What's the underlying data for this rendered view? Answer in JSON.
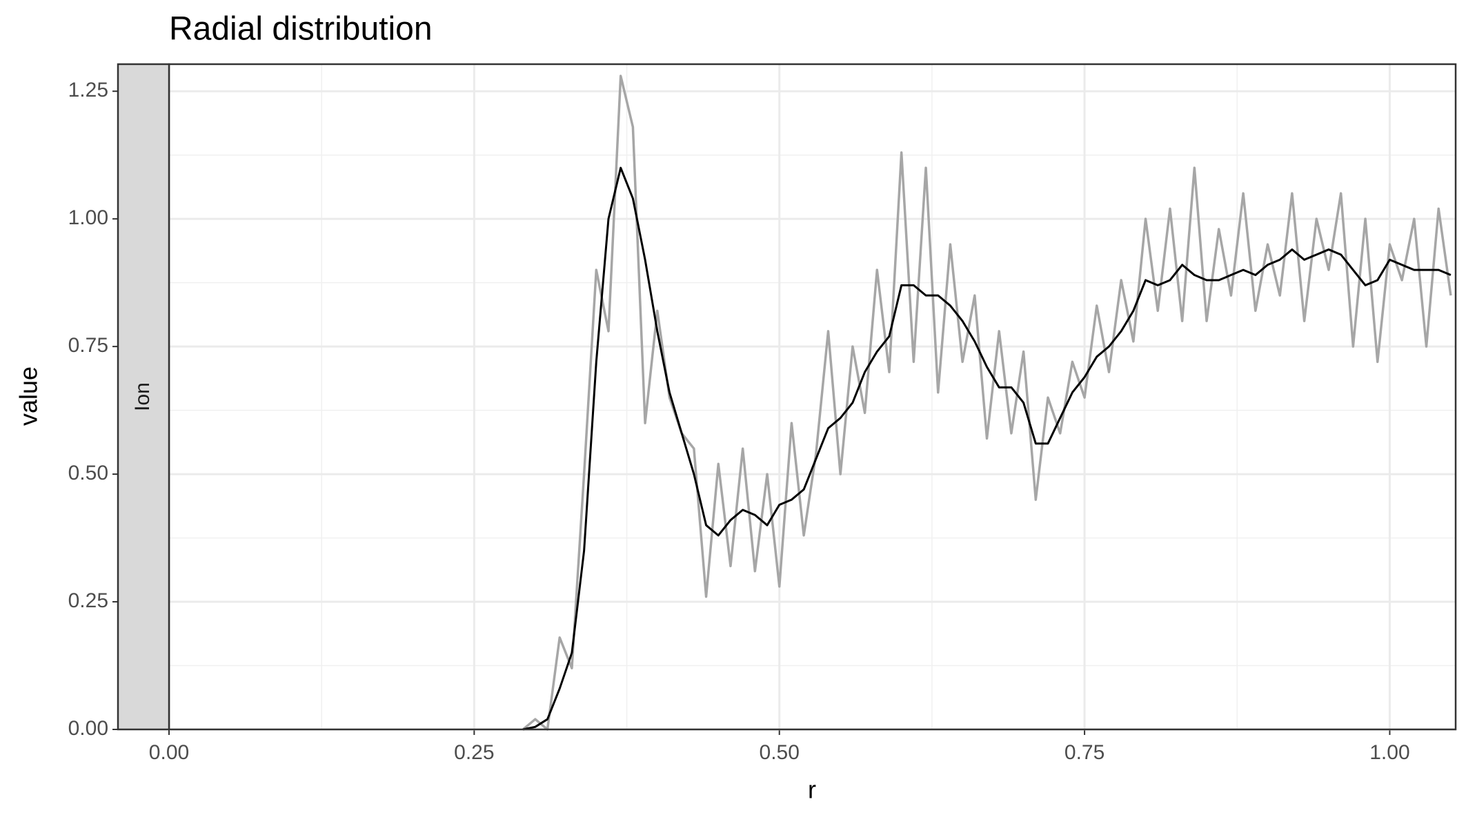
{
  "chart_data": {
    "type": "line",
    "title": "Radial distribution",
    "x_label": "r",
    "y_label": "value",
    "facet_label": "Ion",
    "x": [
      0.29,
      0.3,
      0.31,
      0.32,
      0.33,
      0.34,
      0.35,
      0.36,
      0.37,
      0.38,
      0.39,
      0.4,
      0.41,
      0.42,
      0.43,
      0.44,
      0.45,
      0.46,
      0.47,
      0.48,
      0.49,
      0.5,
      0.51,
      0.52,
      0.53,
      0.54,
      0.55,
      0.56,
      0.57,
      0.58,
      0.59,
      0.6,
      0.61,
      0.62,
      0.63,
      0.64,
      0.65,
      0.66,
      0.67,
      0.68,
      0.69,
      0.7,
      0.71,
      0.72,
      0.73,
      0.74,
      0.75,
      0.76,
      0.77,
      0.78,
      0.79,
      0.8,
      0.81,
      0.82,
      0.83,
      0.84,
      0.85,
      0.86,
      0.87,
      0.88,
      0.89,
      0.9,
      0.91,
      0.92,
      0.93,
      0.94,
      0.95,
      0.96,
      0.97,
      0.98,
      0.99,
      1.0,
      1.01,
      1.02,
      1.03,
      1.04,
      1.05
    ],
    "series": [
      {
        "color": "#a6a6a6",
        "values": [
          0,
          0.02,
          0,
          0.18,
          0.12,
          0.5,
          0.9,
          0.78,
          1.28,
          1.18,
          0.6,
          0.82,
          0.65,
          0.58,
          0.55,
          0.26,
          0.52,
          0.32,
          0.55,
          0.31,
          0.5,
          0.28,
          0.6,
          0.38,
          0.54,
          0.78,
          0.5,
          0.75,
          0.62,
          0.9,
          0.7,
          1.13,
          0.72,
          1.1,
          0.66,
          0.95,
          0.72,
          0.85,
          0.57,
          0.78,
          0.58,
          0.74,
          0.45,
          0.65,
          0.58,
          0.72,
          0.65,
          0.83,
          0.7,
          0.88,
          0.76,
          1.0,
          0.82,
          1.02,
          0.8,
          1.1,
          0.8,
          0.98,
          0.85,
          1.05,
          0.82,
          0.95,
          0.85,
          1.05,
          0.8,
          1.0,
          0.9,
          1.05,
          0.75,
          1.0,
          0.72,
          0.95,
          0.88,
          1.0,
          0.75,
          1.02,
          0.85
        ]
      },
      {
        "color": "#000000",
        "values": [
          0,
          0.005,
          0.02,
          0.08,
          0.15,
          0.35,
          0.72,
          1.0,
          1.1,
          1.04,
          0.92,
          0.78,
          0.66,
          0.58,
          0.5,
          0.4,
          0.38,
          0.41,
          0.43,
          0.42,
          0.4,
          0.44,
          0.45,
          0.47,
          0.53,
          0.59,
          0.61,
          0.64,
          0.7,
          0.74,
          0.77,
          0.87,
          0.87,
          0.85,
          0.85,
          0.83,
          0.8,
          0.76,
          0.71,
          0.67,
          0.67,
          0.64,
          0.56,
          0.56,
          0.61,
          0.66,
          0.69,
          0.73,
          0.75,
          0.78,
          0.82,
          0.88,
          0.87,
          0.88,
          0.91,
          0.89,
          0.88,
          0.88,
          0.89,
          0.9,
          0.89,
          0.91,
          0.92,
          0.94,
          0.92,
          0.93,
          0.94,
          0.93,
          0.9,
          0.87,
          0.88,
          0.92,
          0.91,
          0.9,
          0.9,
          0.9,
          0.89
        ]
      }
    ],
    "xlim": [
      0,
      1.054
    ],
    "ylim": [
      0,
      1.303
    ],
    "xticks": [
      {
        "value": 0,
        "label": "0.00"
      },
      {
        "value": 0.25,
        "label": "0.25"
      },
      {
        "value": 0.5,
        "label": "0.50"
      },
      {
        "value": 0.75,
        "label": "0.75"
      },
      {
        "value": 1,
        "label": "1.00"
      }
    ],
    "yticks": [
      {
        "value": 0,
        "label": "0.00"
      },
      {
        "value": 0.25,
        "label": "0.25"
      },
      {
        "value": 0.5,
        "label": "0.50"
      },
      {
        "value": 0.75,
        "label": "0.75"
      },
      {
        "value": 1,
        "label": "1.00"
      },
      {
        "value": 1.25,
        "label": "1.25"
      }
    ],
    "grid": true
  }
}
